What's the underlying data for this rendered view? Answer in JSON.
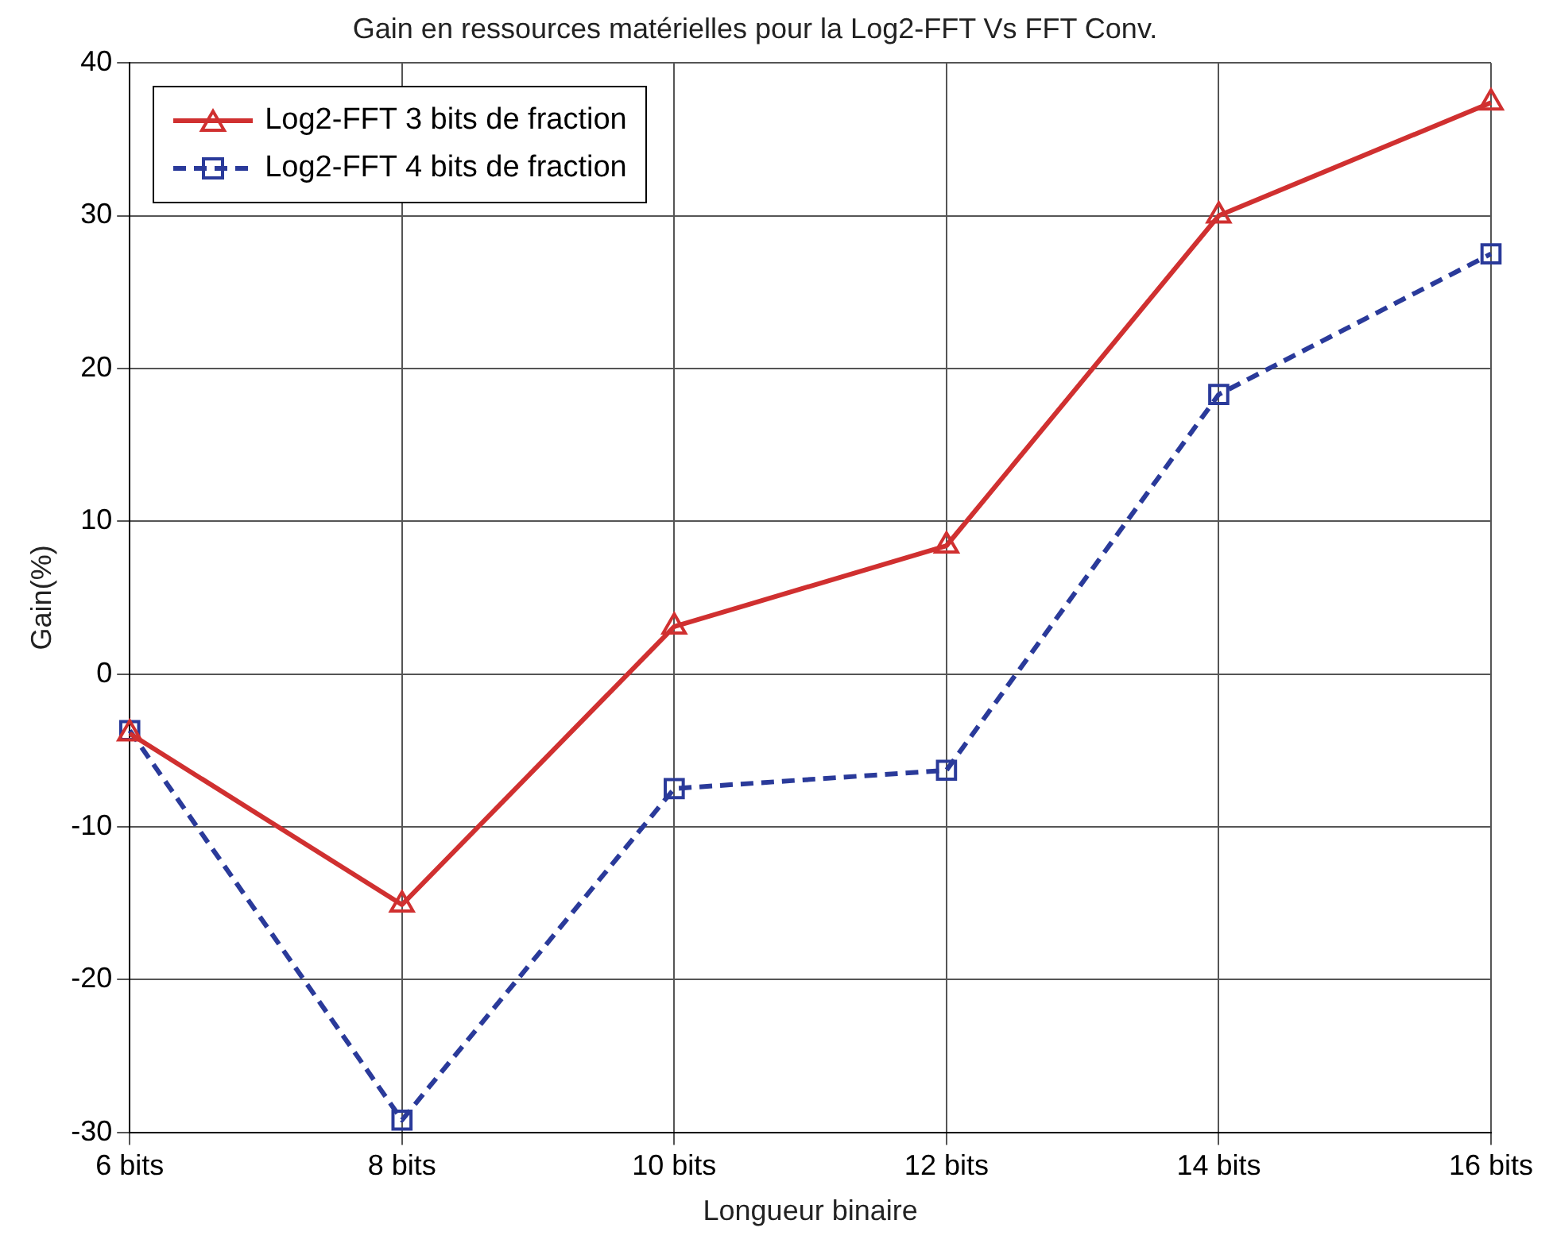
{
  "chart_data": {
    "type": "line",
    "title": "Gain en ressources matérielles pour la Log2-FFT Vs FFT Conv.",
    "xlabel": "Longueur binaire",
    "ylabel": "Gain(%)",
    "categories": [
      "6 bits",
      "8 bits",
      "10 bits",
      "12 bits",
      "14 bits",
      "16 bits"
    ],
    "series": [
      {
        "name": "Log2-FFT 3 bits de fraction",
        "color": "#d03030",
        "marker": "triangle",
        "line_style": "solid",
        "values": [
          -3.9,
          -15.1,
          3.1,
          8.4,
          30.0,
          37.4
        ]
      },
      {
        "name": "Log2-FFT 4 bits de fraction",
        "color": "#2a3a9a",
        "marker": "square",
        "line_style": "dashed",
        "values": [
          -3.7,
          -29.2,
          -7.5,
          -6.3,
          18.3,
          27.5
        ]
      }
    ],
    "ylim": [
      -30,
      40
    ],
    "yticks": [
      -30,
      -20,
      -10,
      0,
      10,
      20,
      30,
      40
    ],
    "grid": true,
    "legend": "top left"
  }
}
